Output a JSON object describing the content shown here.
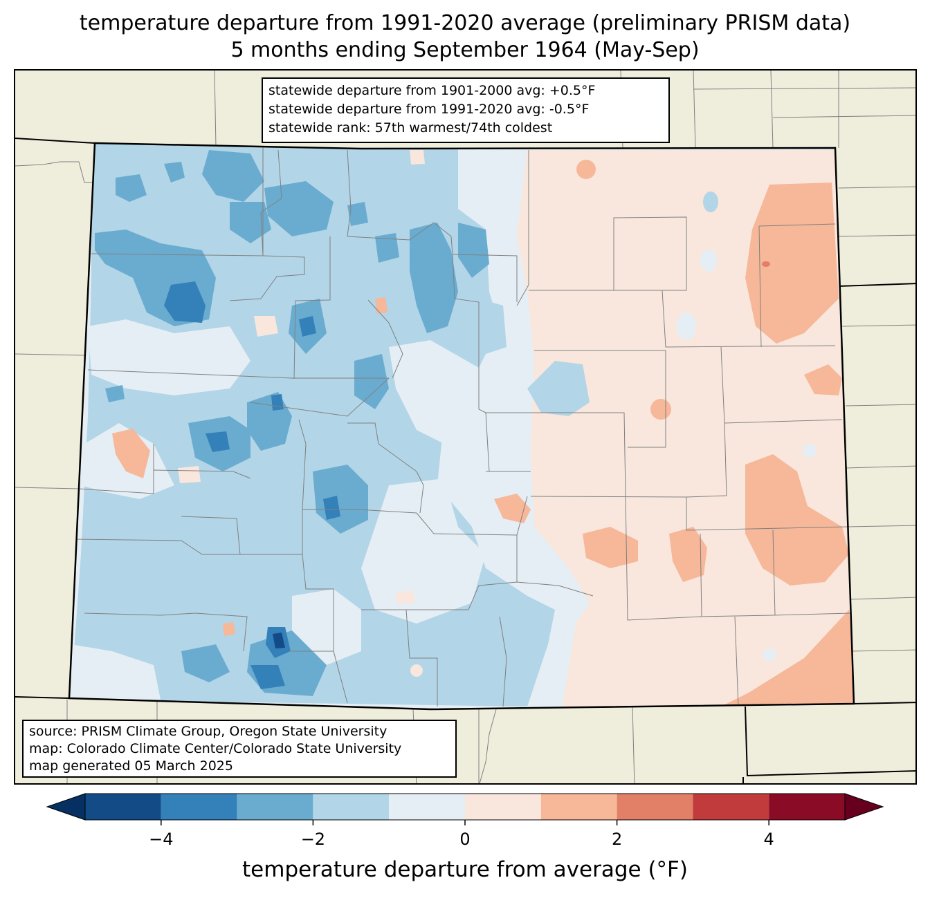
{
  "title": {
    "line1": "temperature departure from 1991-2020 average (preliminary PRISM data)",
    "line2": "5 months ending September 1964 (May-Sep)"
  },
  "stats": {
    "line1": "statewide departure from 1901-2000 avg: +0.5°F",
    "line2": "statewide departure from 1991-2020 avg: -0.5°F",
    "line3": "statewide rank: 57th warmest/74th coldest"
  },
  "source": {
    "line1": "source: PRISM Climate Group, Oregon State University",
    "line2": "map: Colorado Climate Center/Colorado State University",
    "line3": "map generated 05 March 2025"
  },
  "colorbar": {
    "label": "temperature departure from average (°F)",
    "ticks": [
      "−4",
      "−2",
      "0",
      "2",
      "4"
    ],
    "bins": [
      {
        "from": -5,
        "to": -4,
        "color": "#134b87"
      },
      {
        "from": -4,
        "to": -3,
        "color": "#3480b9"
      },
      {
        "from": -3,
        "to": -2,
        "color": "#6aacd0"
      },
      {
        "from": -2,
        "to": -1,
        "color": "#b2d5e7"
      },
      {
        "from": -1,
        "to": 0,
        "color": "#e5eef4"
      },
      {
        "from": 0,
        "to": 1,
        "color": "#f9e7dd"
      },
      {
        "from": 1,
        "to": 2,
        "color": "#f7b799"
      },
      {
        "from": 2,
        "to": 3,
        "color": "#e27f67"
      },
      {
        "from": 3,
        "to": 4,
        "color": "#c13b3c"
      },
      {
        "from": 4,
        "to": 5,
        "color": "#8a0b25"
      }
    ],
    "under_color": "#053061",
    "over_color": "#67001f"
  },
  "map_colors": {
    "land_outside": "#efeddc",
    "state_border": "#000000",
    "county_border": "#808080"
  }
}
